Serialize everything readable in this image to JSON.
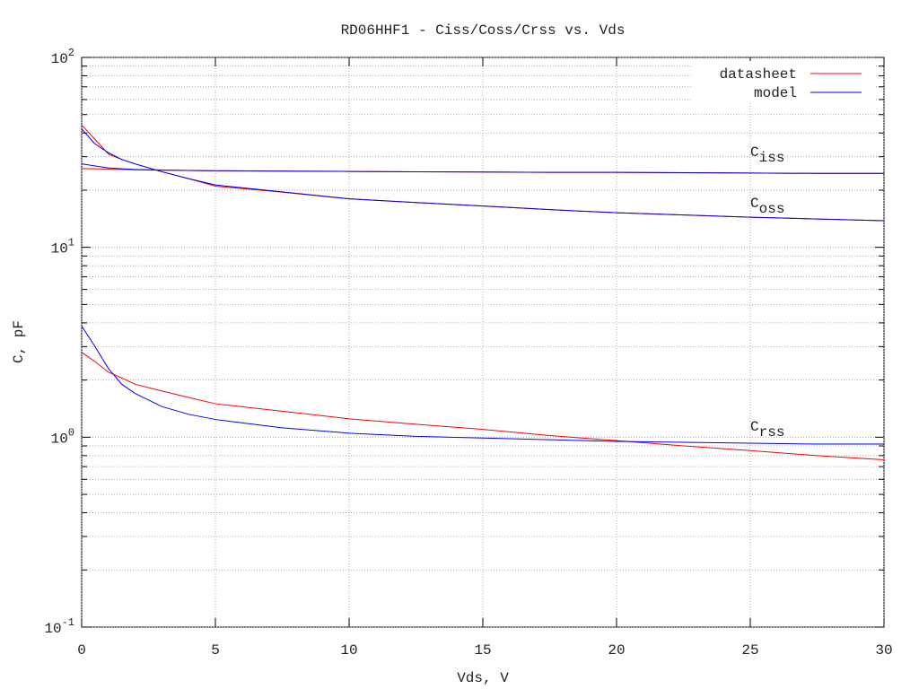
{
  "chart_data": {
    "type": "line",
    "title": "RD06HHF1 - Ciss/Coss/Crss vs. Vds",
    "x_label": "Vds, V",
    "y_label": "C, pF",
    "log_y": true,
    "grid": true,
    "legend": "top-right",
    "xlim": [
      0,
      30
    ],
    "ylim": [
      0.1,
      100
    ],
    "xticks": [
      0,
      5,
      10,
      15,
      20,
      25,
      30
    ],
    "yticks": [
      {
        "value": 0.1,
        "label": "10",
        "exponent": "-1"
      },
      {
        "value": 1,
        "label": "10",
        "exponent": "0"
      },
      {
        "value": 10,
        "label": "10",
        "exponent": "1"
      },
      {
        "value": 100,
        "label": "10",
        "exponent": "2"
      }
    ],
    "minor_yticks": [
      0.2,
      0.3,
      0.4,
      0.5,
      0.6,
      0.7,
      0.8,
      0.9,
      2,
      3,
      4,
      5,
      6,
      7,
      8,
      9,
      20,
      30,
      40,
      50,
      60,
      70,
      80,
      90
    ],
    "x": [
      0,
      0.5,
      1,
      1.5,
      2,
      3,
      4,
      5,
      7.5,
      10,
      12.5,
      15,
      17.5,
      20,
      22.5,
      25,
      27.5,
      30
    ],
    "series": [
      {
        "name": "datasheet",
        "color": "#ff0000",
        "curves": [
          {
            "values": [
              26,
              25.9,
              25.8,
              25.7,
              25.6,
              25.5,
              25.4,
              25.3,
              25.2,
              25.1,
              25,
              24.9,
              24.8,
              24.8,
              24.7,
              24.6,
              24.5,
              24.5
            ]
          },
          {
            "values": [
              44,
              37,
              31,
              29,
              27.5,
              25,
              23,
              21,
              19.5,
              18,
              17.2,
              16.5,
              15.8,
              15.2,
              14.8,
              14.4,
              14.1,
              13.8
            ]
          },
          {
            "values": [
              2.8,
              2.5,
              2.2,
              2.05,
              1.9,
              1.75,
              1.62,
              1.5,
              1.37,
              1.25,
              1.17,
              1.1,
              1.02,
              0.96,
              0.9,
              0.85,
              0.8,
              0.76
            ]
          }
        ]
      },
      {
        "name": "model",
        "color": "#0000ff",
        "curves": [
          {
            "values": [
              27.5,
              26.8,
              26.2,
              25.9,
              25.7,
              25.5,
              25.4,
              25.3,
              25.2,
              25.1,
              25,
              24.9,
              24.8,
              24.8,
              24.7,
              24.6,
              24.5,
              24.5
            ]
          },
          {
            "values": [
              42,
              35,
              31.5,
              29,
              27.5,
              25,
              23,
              21.3,
              19.6,
              18,
              17.2,
              16.5,
              15.8,
              15.2,
              14.8,
              14.4,
              14.1,
              13.8
            ]
          },
          {
            "values": [
              3.85,
              3.0,
              2.3,
              1.9,
              1.7,
              1.45,
              1.32,
              1.24,
              1.12,
              1.05,
              1.01,
              0.99,
              0.97,
              0.95,
              0.94,
              0.93,
              0.92,
              0.92
            ]
          }
        ]
      }
    ],
    "annotations": [
      {
        "text": "C",
        "subscript": "iss"
      },
      {
        "text": "C",
        "subscript": "oss"
      },
      {
        "text": "C",
        "subscript": "rss"
      }
    ]
  }
}
